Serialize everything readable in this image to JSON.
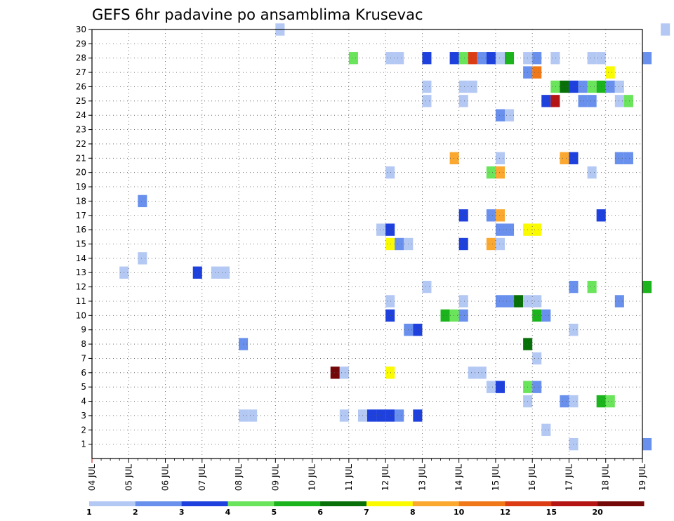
{
  "chart_data": {
    "type": "heatmap",
    "title": "GEFS 6hr padavine po ansamblima Krusevac",
    "xlabel": "",
    "ylabel": "",
    "x_ticks": [
      "04 JUL",
      "05 JUL",
      "06 JUL",
      "07 JUL",
      "08 JUL",
      "09 JUL",
      "10 JUL",
      "11 JUL",
      "12 JUL",
      "13 JUL",
      "14 JUL",
      "15 JUL",
      "16 JUL",
      "17 JUL",
      "18 JUL",
      "19 JUL"
    ],
    "xlim": [
      0,
      15
    ],
    "x_unit": "days from 04 JUL 00Z (6-hour steps)",
    "y_ticks": [
      "1",
      "2",
      "3",
      "4",
      "5",
      "6",
      "7",
      "8",
      "9",
      "10",
      "11",
      "12",
      "13",
      "14",
      "15",
      "16",
      "17",
      "18",
      "19",
      "20",
      "21",
      "22",
      "23",
      "24",
      "25",
      "26",
      "27",
      "28",
      "29",
      "30"
    ],
    "ylim": [
      0,
      30
    ],
    "grid": true,
    "legend": {
      "placement": "bottom",
      "colors": [
        "#b4c8f4",
        "#6890ec",
        "#1e40dc",
        "#6ae45a",
        "#1cb41c",
        "#087008",
        "#fafa00",
        "#faa830",
        "#f07818",
        "#dc3c14",
        "#b41414",
        "#740808"
      ],
      "labels": [
        "1",
        "2",
        "3",
        "4",
        "5",
        "6",
        "7",
        "8",
        "10",
        "12",
        "15",
        "20"
      ]
    },
    "cells": [
      {
        "x": 5.0,
        "y": 30,
        "c": 0
      },
      {
        "x": 15.5,
        "y": 30,
        "c": 0
      },
      {
        "x": 7.0,
        "y": 28,
        "c": 3
      },
      {
        "x": 8.0,
        "y": 28,
        "c": 0
      },
      {
        "x": 8.25,
        "y": 28,
        "c": 0
      },
      {
        "x": 9.0,
        "y": 28,
        "c": 2
      },
      {
        "x": 9.75,
        "y": 28,
        "c": 2
      },
      {
        "x": 10.0,
        "y": 28,
        "c": 3
      },
      {
        "x": 10.25,
        "y": 28,
        "c": 9
      },
      {
        "x": 10.5,
        "y": 28,
        "c": 1
      },
      {
        "x": 10.75,
        "y": 28,
        "c": 2
      },
      {
        "x": 11.0,
        "y": 28,
        "c": 0
      },
      {
        "x": 11.25,
        "y": 28,
        "c": 4
      },
      {
        "x": 11.75,
        "y": 28,
        "c": 0
      },
      {
        "x": 12.0,
        "y": 28,
        "c": 1
      },
      {
        "x": 12.5,
        "y": 28,
        "c": 0
      },
      {
        "x": 13.5,
        "y": 28,
        "c": 0
      },
      {
        "x": 13.75,
        "y": 28,
        "c": 0
      },
      {
        "x": 15.0,
        "y": 28,
        "c": 1
      },
      {
        "x": 11.75,
        "y": 27,
        "c": 1
      },
      {
        "x": 12.0,
        "y": 27,
        "c": 8
      },
      {
        "x": 14.0,
        "y": 27,
        "c": 6
      },
      {
        "x": 9.0,
        "y": 26,
        "c": 0
      },
      {
        "x": 10.0,
        "y": 26,
        "c": 0
      },
      {
        "x": 10.25,
        "y": 26,
        "c": 0
      },
      {
        "x": 12.5,
        "y": 26,
        "c": 3
      },
      {
        "x": 12.75,
        "y": 26,
        "c": 5
      },
      {
        "x": 13.0,
        "y": 26,
        "c": 2
      },
      {
        "x": 13.25,
        "y": 26,
        "c": 1
      },
      {
        "x": 13.5,
        "y": 26,
        "c": 3
      },
      {
        "x": 13.75,
        "y": 26,
        "c": 4
      },
      {
        "x": 14.0,
        "y": 26,
        "c": 1
      },
      {
        "x": 14.25,
        "y": 26,
        "c": 0
      },
      {
        "x": 9.0,
        "y": 25,
        "c": 0
      },
      {
        "x": 10.0,
        "y": 25,
        "c": 0
      },
      {
        "x": 12.25,
        "y": 25,
        "c": 2
      },
      {
        "x": 12.5,
        "y": 25,
        "c": 10
      },
      {
        "x": 13.25,
        "y": 25,
        "c": 1
      },
      {
        "x": 13.5,
        "y": 25,
        "c": 1
      },
      {
        "x": 14.25,
        "y": 25,
        "c": 0
      },
      {
        "x": 14.5,
        "y": 25,
        "c": 3
      },
      {
        "x": 11.0,
        "y": 24,
        "c": 1
      },
      {
        "x": 11.25,
        "y": 24,
        "c": 0
      },
      {
        "x": 9.75,
        "y": 21,
        "c": 7
      },
      {
        "x": 11.0,
        "y": 21,
        "c": 0
      },
      {
        "x": 12.75,
        "y": 21,
        "c": 7
      },
      {
        "x": 13.0,
        "y": 21,
        "c": 2
      },
      {
        "x": 14.25,
        "y": 21,
        "c": 1
      },
      {
        "x": 14.5,
        "y": 21,
        "c": 1
      },
      {
        "x": 8.0,
        "y": 20,
        "c": 0
      },
      {
        "x": 10.75,
        "y": 20,
        "c": 3
      },
      {
        "x": 11.0,
        "y": 20,
        "c": 7
      },
      {
        "x": 13.5,
        "y": 20,
        "c": 0
      },
      {
        "x": 1.25,
        "y": 18,
        "c": 1
      },
      {
        "x": 10.0,
        "y": 17,
        "c": 2
      },
      {
        "x": 10.75,
        "y": 17,
        "c": 1
      },
      {
        "x": 11.0,
        "y": 17,
        "c": 7
      },
      {
        "x": 13.75,
        "y": 17,
        "c": 2
      },
      {
        "x": 7.75,
        "y": 16,
        "c": 0
      },
      {
        "x": 8.0,
        "y": 16,
        "c": 2
      },
      {
        "x": 11.0,
        "y": 16,
        "c": 1
      },
      {
        "x": 11.25,
        "y": 16,
        "c": 1
      },
      {
        "x": 11.75,
        "y": 16,
        "c": 6
      },
      {
        "x": 12.0,
        "y": 16,
        "c": 6
      },
      {
        "x": 8.0,
        "y": 15,
        "c": 6
      },
      {
        "x": 8.25,
        "y": 15,
        "c": 1
      },
      {
        "x": 8.5,
        "y": 15,
        "c": 0
      },
      {
        "x": 10.0,
        "y": 15,
        "c": 2
      },
      {
        "x": 10.75,
        "y": 15,
        "c": 7
      },
      {
        "x": 11.0,
        "y": 15,
        "c": 0
      },
      {
        "x": 1.25,
        "y": 14,
        "c": 0
      },
      {
        "x": 0.75,
        "y": 13,
        "c": 0
      },
      {
        "x": 2.75,
        "y": 13,
        "c": 2
      },
      {
        "x": 3.25,
        "y": 13,
        "c": 0
      },
      {
        "x": 3.5,
        "y": 13,
        "c": 0
      },
      {
        "x": 9.0,
        "y": 12,
        "c": 0
      },
      {
        "x": 13.0,
        "y": 12,
        "c": 1
      },
      {
        "x": 13.5,
        "y": 12,
        "c": 3
      },
      {
        "x": 15.0,
        "y": 12,
        "c": 4
      },
      {
        "x": 8.0,
        "y": 11,
        "c": 0
      },
      {
        "x": 10.0,
        "y": 11,
        "c": 0
      },
      {
        "x": 11.0,
        "y": 11,
        "c": 1
      },
      {
        "x": 11.25,
        "y": 11,
        "c": 1
      },
      {
        "x": 11.5,
        "y": 11,
        "c": 5
      },
      {
        "x": 11.75,
        "y": 11,
        "c": 0
      },
      {
        "x": 12.0,
        "y": 11,
        "c": 0
      },
      {
        "x": 14.25,
        "y": 11,
        "c": 1
      },
      {
        "x": 8.0,
        "y": 10,
        "c": 2
      },
      {
        "x": 9.5,
        "y": 10,
        "c": 4
      },
      {
        "x": 9.75,
        "y": 10,
        "c": 3
      },
      {
        "x": 10.0,
        "y": 10,
        "c": 1
      },
      {
        "x": 12.0,
        "y": 10,
        "c": 4
      },
      {
        "x": 12.25,
        "y": 10,
        "c": 1
      },
      {
        "x": 8.5,
        "y": 9,
        "c": 1
      },
      {
        "x": 8.75,
        "y": 9,
        "c": 2
      },
      {
        "x": 13.0,
        "y": 9,
        "c": 0
      },
      {
        "x": 4.0,
        "y": 8,
        "c": 1
      },
      {
        "x": 11.75,
        "y": 8,
        "c": 5
      },
      {
        "x": 12.0,
        "y": 7,
        "c": 0
      },
      {
        "x": 6.5,
        "y": 6,
        "c": 11
      },
      {
        "x": 6.75,
        "y": 6,
        "c": 0
      },
      {
        "x": 8.0,
        "y": 6,
        "c": 6
      },
      {
        "x": 10.25,
        "y": 6,
        "c": 0
      },
      {
        "x": 10.5,
        "y": 6,
        "c": 0
      },
      {
        "x": 10.75,
        "y": 5,
        "c": 0
      },
      {
        "x": 11.0,
        "y": 5,
        "c": 2
      },
      {
        "x": 11.75,
        "y": 5,
        "c": 3
      },
      {
        "x": 12.0,
        "y": 5,
        "c": 1
      },
      {
        "x": 11.75,
        "y": 4,
        "c": 0
      },
      {
        "x": 12.75,
        "y": 4,
        "c": 1
      },
      {
        "x": 13.0,
        "y": 4,
        "c": 0
      },
      {
        "x": 13.75,
        "y": 4,
        "c": 4
      },
      {
        "x": 14.0,
        "y": 4,
        "c": 3
      },
      {
        "x": 4.0,
        "y": 3,
        "c": 0
      },
      {
        "x": 4.25,
        "y": 3,
        "c": 0
      },
      {
        "x": 6.75,
        "y": 3,
        "c": 0
      },
      {
        "x": 7.25,
        "y": 3,
        "c": 0
      },
      {
        "x": 7.5,
        "y": 3,
        "c": 2
      },
      {
        "x": 7.75,
        "y": 3,
        "c": 2
      },
      {
        "x": 8.0,
        "y": 3,
        "c": 2
      },
      {
        "x": 8.25,
        "y": 3,
        "c": 1
      },
      {
        "x": 8.75,
        "y": 3,
        "c": 2
      },
      {
        "x": 12.25,
        "y": 2,
        "c": 0
      },
      {
        "x": 13.0,
        "y": 1,
        "c": 0
      },
      {
        "x": 15.0,
        "y": 1,
        "c": 1
      }
    ]
  }
}
